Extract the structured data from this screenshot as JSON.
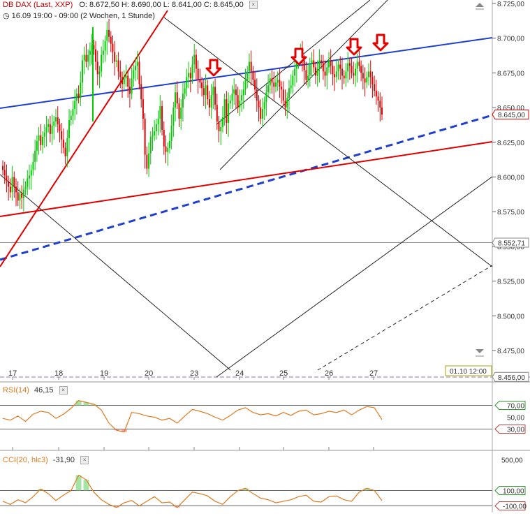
{
  "header": {
    "symbol": "DB DAX (Last, XXP)",
    "ohlc": "O: 8.672,50   H: 8.690,00   L: 8.641,00   C: 8.645,00",
    "period": "16.09 19:00 - 09:00 (2 Wochen, 1 Stunde)"
  },
  "panels": {
    "rsi": {
      "label": "RSI(14)",
      "value": "46,15"
    },
    "cci": {
      "label": "CCI(20, hlc3)",
      "value": "-31,90"
    }
  },
  "colors": {
    "up": "#00cc00",
    "down": "#e00000",
    "blue_line": "#1f3fcf",
    "red_line": "#e00000",
    "indicator": "#e07a1f",
    "arrow": "#e00000"
  },
  "chart_data": [
    {
      "type": "candlestick",
      "title": "DB DAX (Last, XXP)",
      "timeframe": "1 Stunde",
      "ylim": [
        8456,
        8730
      ],
      "y_ticks": [
        "8.725,00",
        "8.700,00",
        "8.675,00",
        "8.650,00",
        "8.625,00",
        "8.600,00",
        "8.575,00",
        "8.550,00",
        "8.525,00",
        "8.500,00",
        "8.475,00"
      ],
      "x_ticks": [
        "17",
        "18",
        "19",
        "20",
        "23",
        "24",
        "25",
        "26",
        "27"
      ],
      "price_labels": [
        {
          "label": "8.645,00",
          "value": 8645
        },
        {
          "label": "8.552,71",
          "value": 8552.71
        },
        {
          "label": "8.456,00",
          "value": 8456
        }
      ],
      "time_label": "01.10 12:00",
      "series": [
        {
          "x": [
            0,
            1,
            2,
            3,
            4,
            5,
            6,
            7,
            8,
            9,
            10,
            11,
            12,
            13,
            14,
            15,
            16,
            17,
            18,
            19,
            20,
            21,
            22,
            23,
            24,
            25,
            26,
            27,
            28,
            29,
            30,
            31,
            32,
            33,
            34,
            35,
            36,
            37,
            38,
            39,
            40,
            41,
            42,
            43,
            44,
            45,
            46,
            47,
            48,
            49,
            50,
            51,
            52,
            53,
            54,
            55,
            56,
            57,
            58,
            59,
            60,
            61,
            62,
            63,
            64,
            65,
            66,
            67,
            68,
            69,
            70,
            71,
            72,
            73,
            74,
            75,
            76,
            77,
            78,
            79,
            80,
            81,
            82,
            83,
            84,
            85,
            86,
            87,
            88,
            89,
            90,
            91,
            92,
            93,
            94,
            95,
            96,
            97,
            98,
            99,
            100,
            101,
            102,
            103,
            104,
            105,
            106,
            107,
            108,
            109,
            110,
            111,
            112,
            113,
            114,
            115,
            116,
            117,
            118,
            119,
            120,
            121,
            122,
            123,
            124,
            125,
            126,
            127,
            128,
            129,
            130,
            131,
            132,
            133,
            134,
            135,
            136,
            137,
            138,
            139,
            140,
            141,
            142,
            143,
            144,
            145,
            146,
            147,
            148,
            149,
            150,
            151,
            152,
            153,
            154,
            155,
            156,
            157,
            158,
            159,
            160,
            161,
            162,
            163,
            164,
            165,
            166,
            167,
            168,
            169,
            170,
            171,
            172,
            173,
            174,
            175,
            176,
            177,
            178,
            179,
            180,
            181,
            182,
            183,
            184,
            185,
            186,
            187,
            188,
            189,
            190,
            191,
            192,
            193,
            194,
            195,
            196,
            197,
            198,
            199,
            200
          ],
          "y_close": [
            8605,
            8601,
            8597,
            8593,
            8589,
            8600,
            8593,
            8589,
            8583,
            8588,
            8585,
            8591,
            8593,
            8599,
            8601,
            8605,
            8611,
            8619,
            8626,
            8630,
            8623,
            8629,
            8632,
            8636,
            8638,
            8631,
            8637,
            8640,
            8643,
            8638,
            8633,
            8627,
            8621,
            8615,
            8628,
            8641,
            8644,
            8649,
            8655,
            8660,
            8657,
            8668,
            8684,
            8688,
            8683,
            8688,
            8691,
            8695,
            8692,
            8683,
            8674,
            8676,
            8688,
            8691,
            8698,
            8706,
            8701,
            8696,
            8690,
            8683,
            8684,
            8676,
            8672,
            8667,
            8671,
            8673,
            8665,
            8660,
            8671,
            8677,
            8680,
            8683,
            8667,
            8656,
            8642,
            8616,
            8606,
            8617,
            8629,
            8630,
            8633,
            8638,
            8642,
            8651,
            8634,
            8622,
            8618,
            8621,
            8626,
            8637,
            8650,
            8661,
            8653,
            8642,
            8650,
            8660,
            8664,
            8672,
            8675,
            8671,
            8681,
            8688,
            8678,
            8670,
            8668,
            8664,
            8659,
            8666,
            8656,
            8650,
            8659,
            8665,
            8652,
            8640,
            8633,
            8636,
            8643,
            8656,
            8639,
            8653,
            8655,
            8660,
            8663,
            8659,
            8650,
            8655,
            8659,
            8663,
            8670,
            8676,
            8683,
            8676,
            8670,
            8663,
            8655,
            8650,
            8642,
            8649,
            8654,
            8661,
            8666,
            8671,
            8668,
            8665,
            8668,
            8670,
            8665,
            8663,
            8655,
            8650,
            8657,
            8664,
            8666,
            8673,
            8678,
            8682,
            8687,
            8690,
            8684,
            8677,
            8670,
            8673,
            8682,
            8684,
            8679,
            8673,
            8678,
            8684,
            8682,
            8676,
            8673,
            8679,
            8684,
            8680,
            8674,
            8672,
            8676,
            8681,
            8678,
            8673,
            8671,
            8676,
            8682,
            8680,
            8675,
            8673,
            8678,
            8683,
            8680,
            8675,
            8671,
            8668,
            8672,
            8676,
            8672,
            8667,
            8662,
            8658,
            8655,
            8650,
            8645
          ],
          "name": ""
        }
      ]
    },
    {
      "type": "line",
      "title": "RSI(14)",
      "ylim": [
        0,
        100
      ],
      "y_ticks": [
        "70,00",
        "50,00",
        "30,00"
      ],
      "reference_lines": [
        70,
        30
      ],
      "x": [
        0,
        4,
        8,
        12,
        16,
        20,
        24,
        28,
        32,
        36,
        40,
        44,
        48,
        52,
        56,
        60,
        64,
        68,
        72,
        76,
        80,
        84,
        88,
        92,
        96,
        100,
        104,
        108,
        112,
        116,
        120,
        124,
        128,
        132,
        136,
        140,
        144,
        148,
        152,
        156,
        160,
        164,
        168,
        172,
        176,
        180,
        184,
        188,
        192,
        196,
        200
      ],
      "values": [
        48,
        45,
        52,
        43,
        55,
        60,
        58,
        48,
        55,
        65,
        78,
        75,
        72,
        62,
        40,
        28,
        25,
        58,
        56,
        52,
        50,
        45,
        48,
        40,
        52,
        63,
        60,
        56,
        50,
        45,
        53,
        62,
        66,
        58,
        54,
        56,
        52,
        58,
        53,
        60,
        62,
        54,
        56,
        60,
        58,
        62,
        54,
        62,
        68,
        66,
        46
      ]
    },
    {
      "type": "line",
      "title": "CCI(20, hlc3)",
      "ylim": [
        -150,
        560
      ],
      "y_ticks": [
        "500,00",
        "100,00",
        "-100,00"
      ],
      "reference_lines": [
        100,
        -100
      ],
      "x": [
        0,
        4,
        8,
        12,
        16,
        20,
        24,
        28,
        32,
        36,
        40,
        44,
        48,
        52,
        56,
        60,
        64,
        68,
        72,
        76,
        80,
        84,
        88,
        92,
        96,
        100,
        104,
        108,
        112,
        116,
        120,
        124,
        128,
        132,
        136,
        140,
        144,
        148,
        152,
        156,
        160,
        164,
        168,
        172,
        176,
        180,
        184,
        188,
        192,
        196,
        200
      ],
      "values": [
        -40,
        -80,
        -20,
        -60,
        20,
        120,
        60,
        -30,
        40,
        100,
        300,
        240,
        80,
        -20,
        -80,
        -120,
        -60,
        -30,
        -100,
        -40,
        20,
        -60,
        -50,
        -120,
        -20,
        80,
        60,
        30,
        -40,
        -80,
        20,
        100,
        130,
        60,
        0,
        -20,
        -60,
        -40,
        -20,
        20,
        40,
        -40,
        -50,
        20,
        30,
        -20,
        -40,
        80,
        130,
        100,
        -32
      ]
    }
  ]
}
